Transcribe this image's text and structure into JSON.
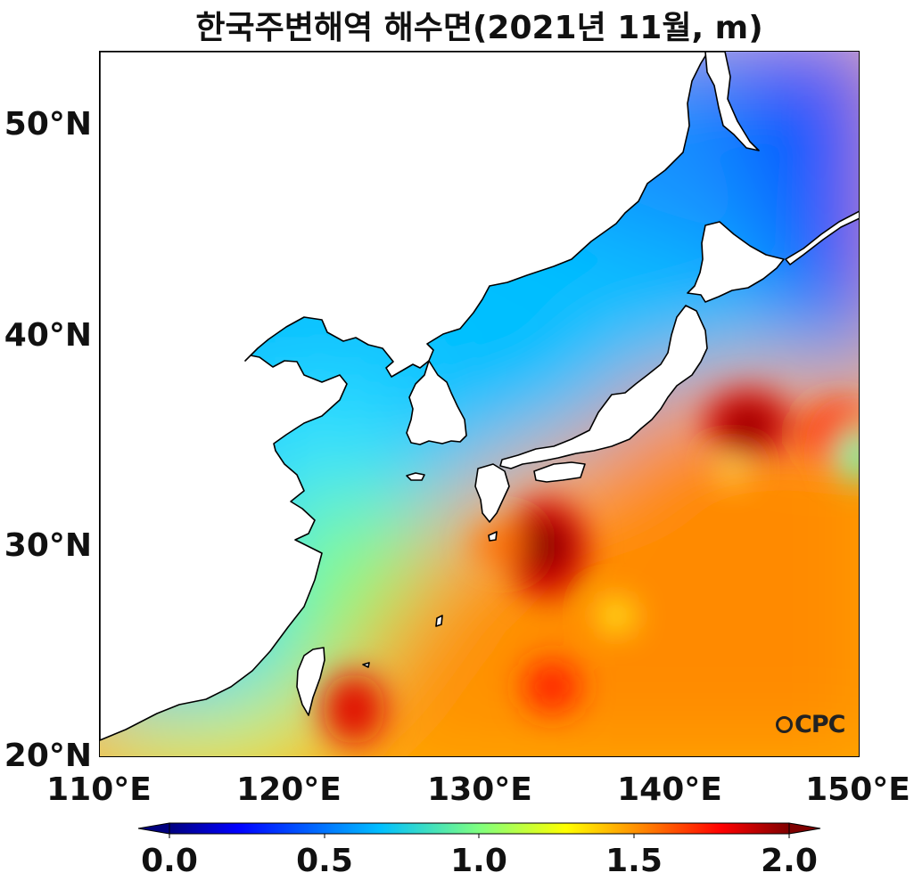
{
  "title": "한국주변해역 해수면(2021년 11월, m)",
  "map": {
    "lon_ticks": [
      "110°E",
      "120°E",
      "130°E",
      "140°E",
      "150°E"
    ],
    "lat_ticks": [
      "50°N",
      "40°N",
      "30°N",
      "20°N"
    ],
    "lon_range": [
      110,
      150
    ],
    "lat_range": [
      20,
      53.5
    ],
    "variable": "sea surface height",
    "unit": "m",
    "high_centers": [
      {
        "lon": 133.5,
        "lat": 29.9,
        "value": 2.0
      },
      {
        "lon": 144.2,
        "lat": 35.7,
        "value": 2.0
      },
      {
        "lon": 123.2,
        "lat": 22.0,
        "value": 1.9
      },
      {
        "lon": 133.7,
        "lat": 23.4,
        "value": 1.8
      }
    ]
  },
  "colorbar": {
    "ticks": [
      "0.0",
      "0.5",
      "1.0",
      "1.5",
      "2.0"
    ],
    "min": 0.0,
    "max": 2.0,
    "colormap": "jet",
    "extend": "both"
  },
  "logo": "CPC",
  "colors": {
    "land": "#ffffff",
    "coastline": "#000000",
    "jet_low": "#00007f",
    "jet_high": "#7f0000"
  }
}
